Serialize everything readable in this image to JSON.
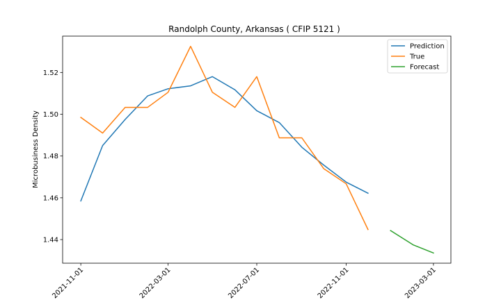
{
  "chart_data": {
    "type": "line",
    "title": "Randolph County, Arkansas ( CFIP 5121 )",
    "xlabel": "",
    "ylabel": "Microbusiness Density",
    "x_tick_labels": [
      "2021-11-01",
      "2022-03-01",
      "2022-07-01",
      "2022-11-01",
      "2023-03-01"
    ],
    "y_ticks": [
      1.44,
      1.46,
      1.48,
      1.5,
      1.52
    ],
    "y_tick_labels": [
      "1.44",
      "1.46",
      "1.48",
      "1.50",
      "1.52"
    ],
    "ylim": [
      1.4287,
      1.5374
    ],
    "xlim": [
      "2021-10-07",
      "2023-03-25"
    ],
    "grid": false,
    "legend_position": "top-right",
    "series": [
      {
        "name": "Prediction",
        "color": "#1f77b4",
        "x": [
          "2021-11-01",
          "2021-12-01",
          "2022-01-01",
          "2022-02-01",
          "2022-03-01",
          "2022-04-01",
          "2022-05-01",
          "2022-06-01",
          "2022-07-01",
          "2022-08-01",
          "2022-09-01",
          "2022-10-01",
          "2022-11-01",
          "2022-12-01"
        ],
        "values": [
          1.4585,
          1.485,
          1.4975,
          1.5088,
          1.5122,
          1.5136,
          1.518,
          1.5117,
          1.5017,
          1.496,
          1.4842,
          1.4757,
          1.4675,
          1.4622
        ]
      },
      {
        "name": "True",
        "color": "#ff7f0e",
        "x": [
          "2021-11-01",
          "2021-12-01",
          "2022-01-01",
          "2022-02-01",
          "2022-03-01",
          "2022-04-01",
          "2022-05-01",
          "2022-06-01",
          "2022-07-01",
          "2022-08-01",
          "2022-09-01",
          "2022-10-01",
          "2022-11-01",
          "2022-12-01"
        ],
        "values": [
          1.4985,
          1.491,
          1.5033,
          1.5033,
          1.5105,
          1.5325,
          1.5105,
          1.5033,
          1.518,
          1.4887,
          1.4887,
          1.474,
          1.4667,
          1.4448
        ]
      },
      {
        "name": "Forecast",
        "color": "#2ca02c",
        "x": [
          "2023-01-01",
          "2023-02-01",
          "2023-03-01"
        ],
        "values": [
          1.4443,
          1.4375,
          1.4336
        ]
      }
    ]
  }
}
